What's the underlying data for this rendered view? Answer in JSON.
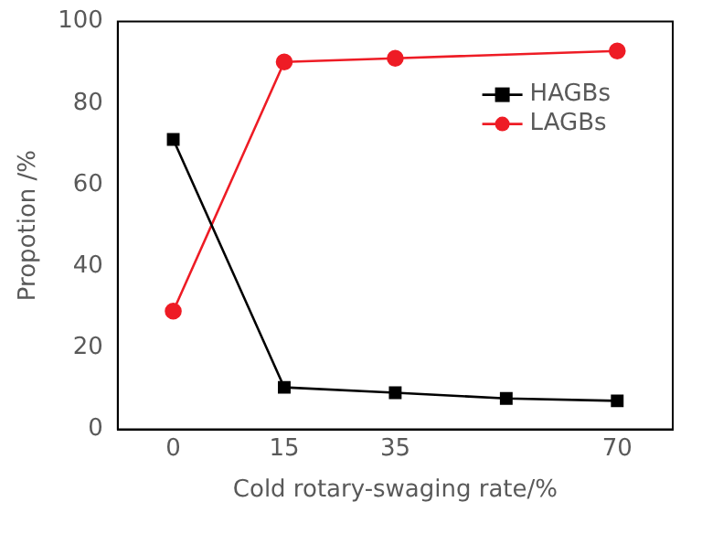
{
  "chart_data": {
    "type": "line",
    "xlabel": "Cold rotary-swaging rate/%",
    "ylabel": "Propotion /%",
    "categories": [
      "0",
      "15",
      "35",
      null,
      "70"
    ],
    "ylim": [
      0,
      100
    ],
    "yticks": [
      0,
      20,
      40,
      60,
      80,
      100
    ],
    "grid": false,
    "legend": "top right",
    "series": [
      {
        "name": "HAGBs",
        "color": "#000000",
        "marker": "square",
        "values": [
          71.1,
          10.3,
          9.0,
          7.6,
          7.0
        ]
      },
      {
        "name": "LAGBs",
        "color": "#ee1c25",
        "marker": "circle",
        "values": [
          29.0,
          90.1,
          91.0,
          null,
          92.8
        ]
      }
    ]
  }
}
